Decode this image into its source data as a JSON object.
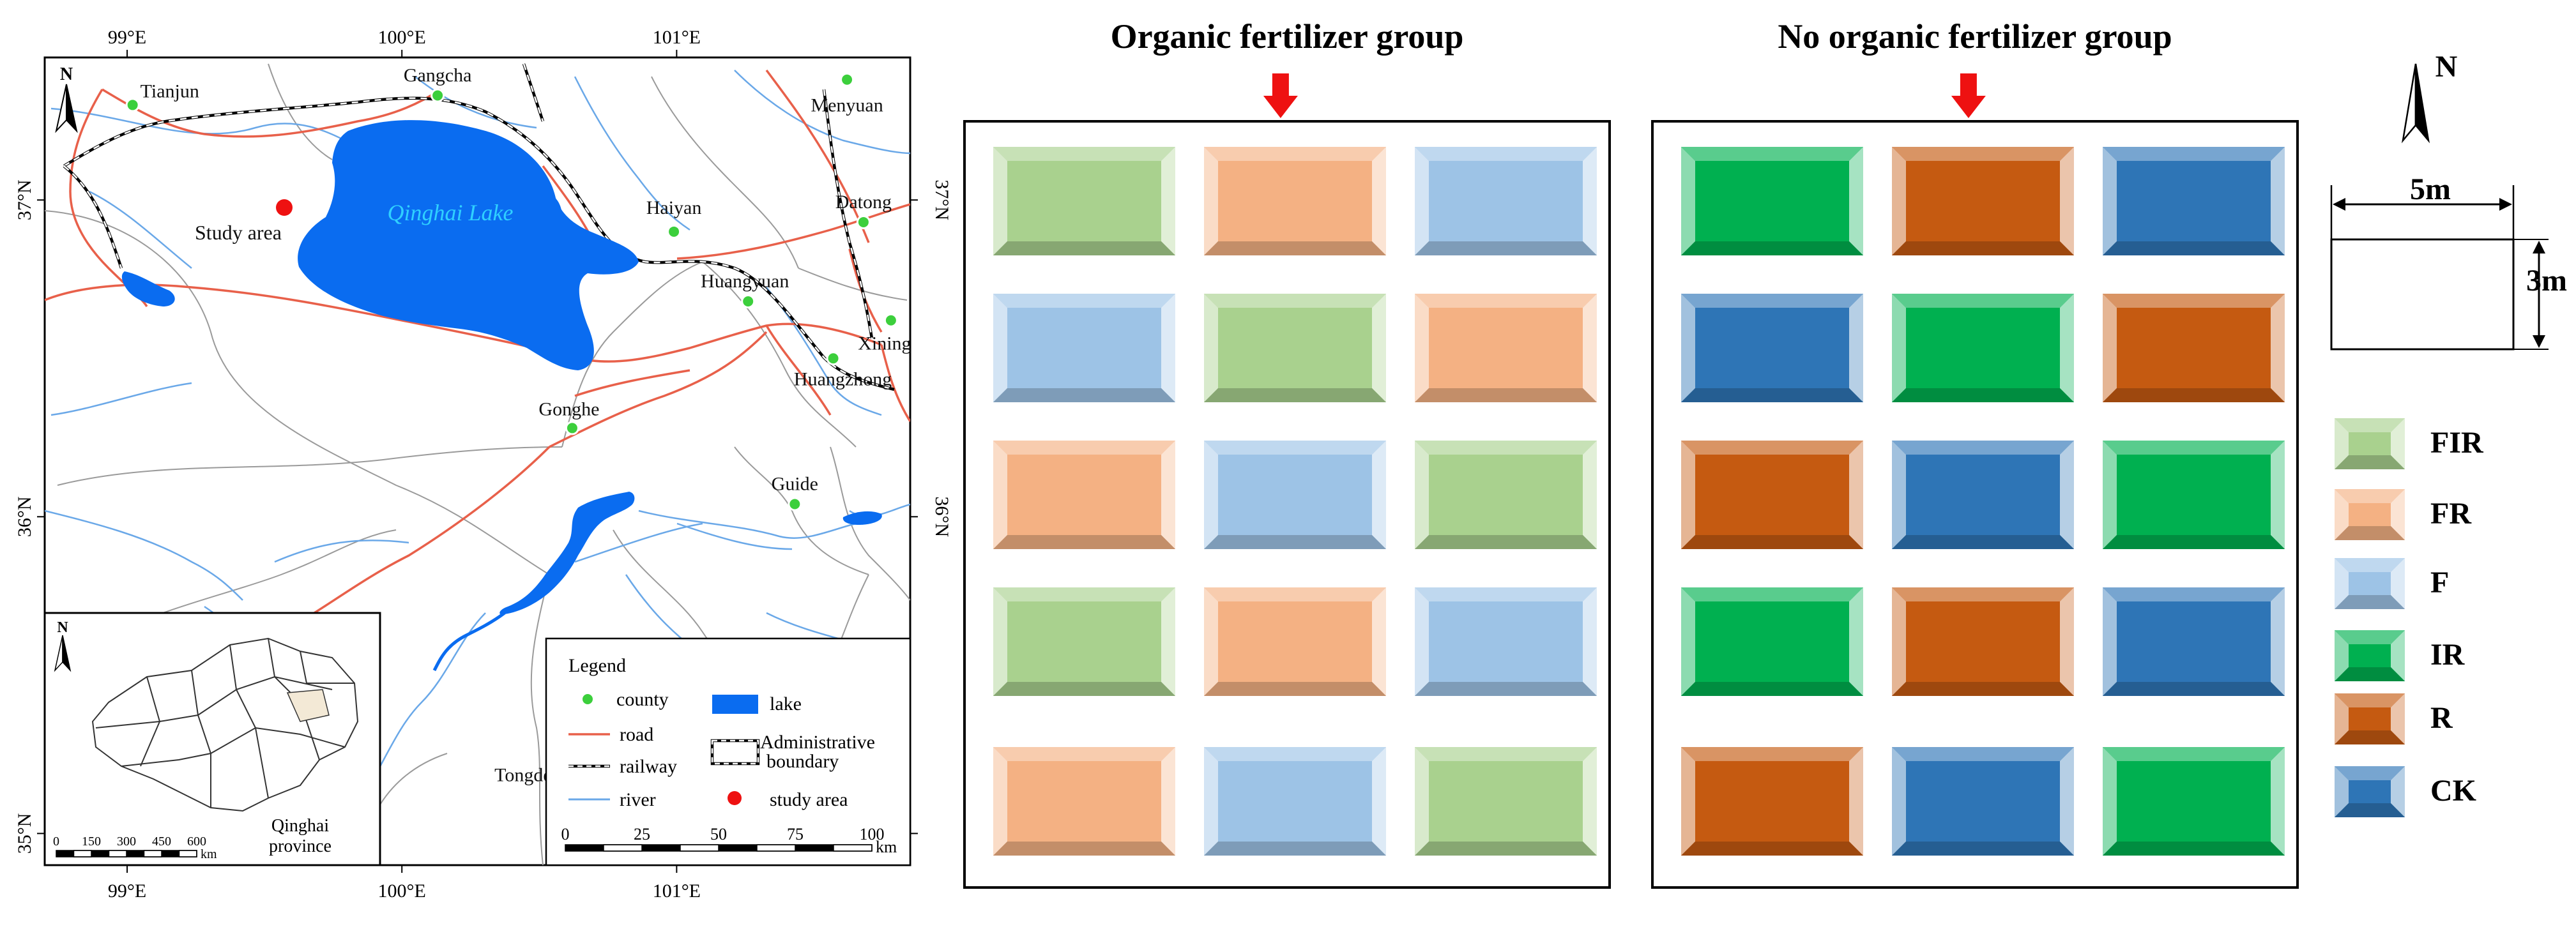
{
  "map": {
    "lon_ticks": [
      "99°E",
      "100°E",
      "101°E"
    ],
    "lat_ticks": [
      "37°N",
      "36°N",
      "35°N"
    ],
    "north_label": "N",
    "lake_name": "Qinghai Lake",
    "study_area_label": "Study area",
    "counties": [
      {
        "name": "Tianjun",
        "lon": 99.02,
        "lat": 37.3
      },
      {
        "name": "Gangcha",
        "lon": 100.13,
        "lat": 37.33
      },
      {
        "name": "Menyuan",
        "lon": 101.62,
        "lat": 37.38
      },
      {
        "name": "Haiyan",
        "lon": 100.99,
        "lat": 36.9
      },
      {
        "name": "Datong",
        "lon": 101.68,
        "lat": 36.93
      },
      {
        "name": "Huangyuan",
        "lon": 101.26,
        "lat": 36.68
      },
      {
        "name": "Xining",
        "lon": 101.78,
        "lat": 36.62
      },
      {
        "name": "Huangzhong",
        "lon": 101.57,
        "lat": 36.5
      },
      {
        "name": "Gonghe",
        "lon": 100.62,
        "lat": 36.28
      },
      {
        "name": "Guide",
        "lon": 101.43,
        "lat": 36.04
      },
      {
        "name": "Tongde",
        "lon": 100.58,
        "lat": 35.25
      }
    ],
    "legend": {
      "title": "Legend",
      "items": [
        {
          "label": "county",
          "symbol": "county"
        },
        {
          "label": "road",
          "symbol": "road"
        },
        {
          "label": "railway",
          "symbol": "railway"
        },
        {
          "label": "river",
          "symbol": "river"
        },
        {
          "label": "lake",
          "symbol": "lake"
        },
        {
          "label": "Administrative",
          "label2": "boundary",
          "symbol": "boundary"
        },
        {
          "label": "study area",
          "symbol": "study"
        }
      ]
    },
    "scale": {
      "ticks": [
        "0",
        "25",
        "50",
        "75",
        "100"
      ],
      "unit": "km"
    },
    "inset": {
      "north_label": "N",
      "scale_ticks": [
        "0",
        "150",
        "300",
        "450",
        "600"
      ],
      "scale_unit": "km",
      "label_line1": "Qinghai",
      "label_line2": "province"
    },
    "colors": {
      "lake": "#0a6cf0",
      "road": "#e8604a",
      "river": "#6aa8e8",
      "county_fill": "#3ccf3c",
      "study_area": "#ee1111",
      "lake_label": "#2fd0ff"
    }
  },
  "plots": {
    "groups": [
      {
        "title": "Organic fertilizer group",
        "rows": [
          [
            "FIR",
            "FR",
            "F"
          ],
          [
            "F",
            "FIR",
            "FR"
          ],
          [
            "FR",
            "F",
            "FIR"
          ],
          [
            "FIR",
            "FR",
            "F"
          ],
          [
            "FR",
            "F",
            "FIR"
          ]
        ]
      },
      {
        "title": "No organic fertilizer group",
        "rows": [
          [
            "IR",
            "R",
            "CK"
          ],
          [
            "CK",
            "IR",
            "R"
          ],
          [
            "R",
            "CK",
            "IR"
          ],
          [
            "IR",
            "R",
            "CK"
          ],
          [
            "R",
            "CK",
            "IR"
          ]
        ]
      }
    ],
    "treatment_colors": {
      "FIR": "#a9d18e",
      "FR": "#f4b183",
      "F": "#9dc3e6",
      "IR": "#00b050",
      "R": "#c55a11",
      "CK": "#2e75b6"
    },
    "arrow_color": "#ee1111",
    "north_label": "N",
    "dimensions": {
      "width": "5m",
      "height": "3m"
    },
    "legend": [
      "FIR",
      "FR",
      "F",
      "IR",
      "R",
      "CK"
    ]
  }
}
